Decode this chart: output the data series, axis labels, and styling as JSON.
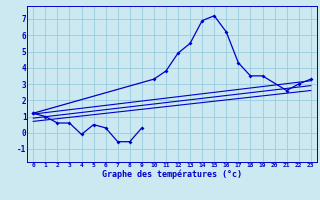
{
  "xlabel": "Graphe des températures (°c)",
  "background_color": "#cce8f0",
  "grid_color": "#99ccdd",
  "line_color": "#0000cc",
  "ylim": [
    -1.8,
    7.8
  ],
  "xlim": [
    -0.5,
    23.5
  ],
  "yticks": [
    -1,
    0,
    1,
    2,
    3,
    4,
    5,
    6,
    7
  ],
  "x_ticks": [
    0,
    1,
    2,
    3,
    4,
    5,
    6,
    7,
    8,
    9,
    10,
    11,
    12,
    13,
    14,
    15,
    16,
    17,
    18,
    19,
    20,
    21,
    22,
    23
  ],
  "series1_x": [
    0,
    1,
    2,
    3,
    4,
    5,
    6,
    7,
    8,
    9
  ],
  "series1_y": [
    1.2,
    1.0,
    0.6,
    0.6,
    -0.1,
    0.5,
    0.3,
    -0.55,
    -0.55,
    0.3
  ],
  "series2_x": [
    0,
    10,
    11,
    12,
    13,
    14,
    15,
    16,
    17,
    18,
    19,
    21,
    22,
    23
  ],
  "series2_y": [
    1.2,
    3.3,
    3.8,
    4.9,
    5.5,
    6.9,
    7.2,
    6.2,
    4.3,
    3.5,
    3.5,
    2.6,
    3.0,
    3.3
  ],
  "reg_lines": [
    {
      "x": [
        0,
        23
      ],
      "y": [
        0.7,
        2.6
      ]
    },
    {
      "x": [
        0,
        23
      ],
      "y": [
        0.9,
        2.9
      ]
    },
    {
      "x": [
        0,
        23
      ],
      "y": [
        1.15,
        3.2
      ]
    }
  ]
}
